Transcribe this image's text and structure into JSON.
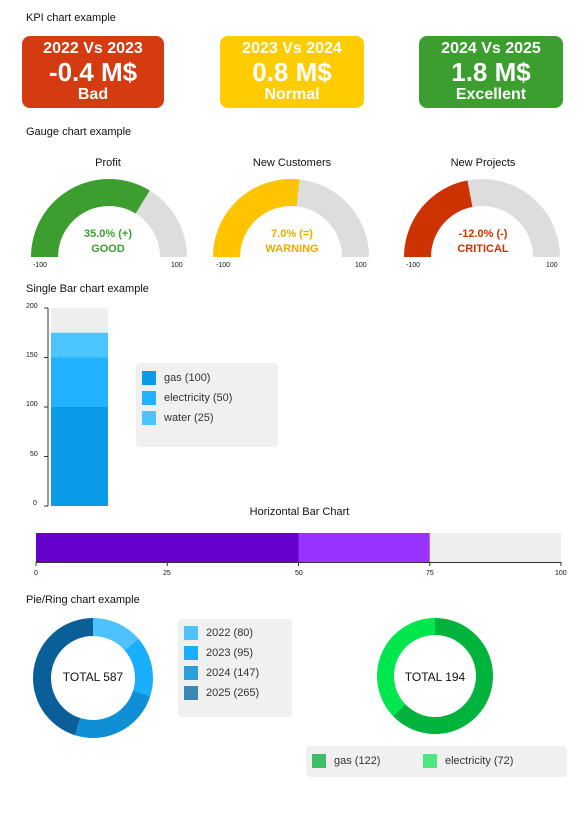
{
  "sections": {
    "kpi_title": "KPI chart example",
    "gauge_title": "Gauge chart example",
    "single_bar_title": "Single Bar chart example",
    "hbar_title": "Horizontal Bar Chart",
    "pie_title": "Pie/Ring chart example"
  },
  "chart_data": [
    {
      "type": "kpi",
      "cards": [
        {
          "header": "2022  Vs 2023",
          "value": "-0.4 M$",
          "status": "Bad",
          "color": "#d43b10"
        },
        {
          "header": "2023 Vs 2024",
          "value": "0.8 M$",
          "status": "Normal",
          "color": "#ffcc00"
        },
        {
          "header": "2024 Vs 2025",
          "value": "1.8 M$",
          "status": "Excellent",
          "color": "#3c9e2f"
        }
      ]
    },
    {
      "type": "gauge",
      "min": -100,
      "max": 100,
      "gauges": [
        {
          "title": "Profit",
          "value": 35.0,
          "value_text": "35.0% (+)",
          "status": "GOOD",
          "color": "#3c9e2f"
        },
        {
          "title": "New Customers",
          "value": 7.0,
          "value_text": "7.0% (=)",
          "status": "WARNING",
          "color": "#ffc300"
        },
        {
          "title": "New Projects",
          "value": -12.0,
          "value_text": "-12.0% (-)",
          "status": "CRITICAL",
          "color": "#cc3300"
        }
      ],
      "track_color": "#dddddd",
      "min_label": "-100",
      "max_label": "100"
    },
    {
      "type": "bar",
      "stacked": true,
      "ylim": [
        0,
        200
      ],
      "yticks": [
        "0",
        "50",
        "100",
        "150",
        "200"
      ],
      "series": [
        {
          "name": "gas (100)",
          "value": 100,
          "color": "#0a9ae8"
        },
        {
          "name": "electricity (50)",
          "value": 50,
          "color": "#22b2ff"
        },
        {
          "name": "water (25)",
          "value": 25,
          "color": "#4cc4ff"
        }
      ],
      "legend": "right",
      "background_color": "#eeeeee"
    },
    {
      "type": "bar",
      "orientation": "horizontal",
      "title": "Horizontal Bar Chart",
      "xlim": [
        0,
        100
      ],
      "xticks": [
        "0",
        "25",
        "50",
        "75",
        "100"
      ],
      "segments": [
        {
          "value": 50,
          "color": "#6600cc"
        },
        {
          "value": 25,
          "color": "#9933ff"
        }
      ],
      "background_color": "#eeeeee"
    },
    {
      "type": "pie",
      "ring": true,
      "total_label": "TOTAL 587",
      "slices": [
        {
          "name": "2022 (80)",
          "value": 80,
          "color": "#4dc2ff"
        },
        {
          "name": "2023 (95)",
          "value": 95,
          "color": "#1aaeff"
        },
        {
          "name": "2024 (147)",
          "value": 147,
          "color": "#0f8fd6"
        },
        {
          "name": "2025 (265)",
          "value": 265,
          "color": "#0b5f99"
        }
      ],
      "legend": "right"
    },
    {
      "type": "pie",
      "ring": true,
      "total_label": "TOTAL 194",
      "slices": [
        {
          "name": "gas (122)",
          "value": 122,
          "color": "#00b33c"
        },
        {
          "name": "electricity (72)",
          "value": 72,
          "color": "#00e64d"
        }
      ],
      "legend": "bottom",
      "legend_colors": [
        "#3dbf6a",
        "#4de680"
      ]
    }
  ]
}
